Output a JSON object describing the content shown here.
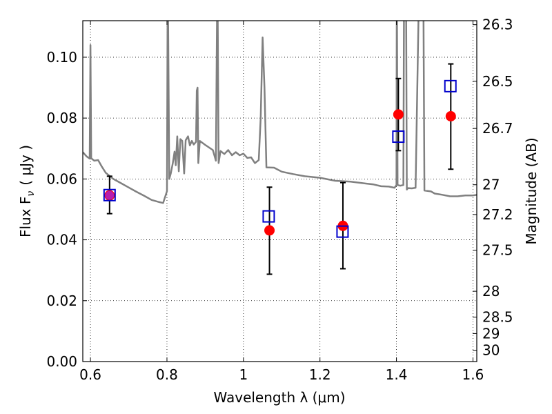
{
  "chart_data": {
    "type": "scatter",
    "xlabel": "Wavelength  λ (μm)",
    "ylabel": "Flux  F",
    "ylabel_sub": "ν",
    "ylabel_unit": "( μJy )",
    "y2label": "Magnitude (AB)",
    "xlim": [
      0.58,
      1.61
    ],
    "ylim": [
      0.0,
      0.112
    ],
    "grid": true,
    "x_ticks": [
      {
        "value": 0.6,
        "label": "0.6"
      },
      {
        "value": 0.8,
        "label": "0.8"
      },
      {
        "value": 1.0,
        "label": "1"
      },
      {
        "value": 1.2,
        "label": "1.2"
      },
      {
        "value": 1.4,
        "label": "1.4"
      },
      {
        "value": 1.6,
        "label": "1.6"
      }
    ],
    "y_ticks": [
      {
        "value": 0.0,
        "label": "0.00"
      },
      {
        "value": 0.02,
        "label": "0.02"
      },
      {
        "value": 0.04,
        "label": "0.04"
      },
      {
        "value": 0.06,
        "label": "0.06"
      },
      {
        "value": 0.08,
        "label": "0.08"
      },
      {
        "value": 0.1,
        "label": "0.10"
      }
    ],
    "y2_ticks": [
      {
        "label": "26.3",
        "flux": 0.1107
      },
      {
        "label": "26.5",
        "flux": 0.0921
      },
      {
        "label": "26.7",
        "flux": 0.0766
      },
      {
        "label": "27",
        "flux": 0.0581
      },
      {
        "label": "27.2",
        "flux": 0.0483
      },
      {
        "label": "27.5",
        "flux": 0.0366
      },
      {
        "label": "28",
        "flux": 0.0231
      },
      {
        "label": "28.5",
        "flux": 0.0146
      },
      {
        "label": "29",
        "flux": 0.0092
      },
      {
        "label": "30",
        "flux": 0.0037
      }
    ],
    "series": [
      {
        "kind": "line",
        "color": "#808080",
        "points": [
          [
            0.58,
            0.0688
          ],
          [
            0.59,
            0.0674
          ],
          [
            0.598,
            0.0667
          ],
          [
            0.6,
            0.104
          ],
          [
            0.602,
            0.0668
          ],
          [
            0.61,
            0.066
          ],
          [
            0.62,
            0.0662
          ],
          [
            0.63,
            0.064
          ],
          [
            0.64,
            0.062
          ],
          [
            0.66,
            0.06
          ],
          [
            0.68,
            0.0586
          ],
          [
            0.7,
            0.0572
          ],
          [
            0.72,
            0.0558
          ],
          [
            0.74,
            0.0545
          ],
          [
            0.76,
            0.0531
          ],
          [
            0.78,
            0.0524
          ],
          [
            0.79,
            0.0521
          ],
          [
            0.8,
            0.056
          ],
          [
            0.802,
            0.13
          ],
          [
            0.806,
            0.06
          ],
          [
            0.81,
            0.0618
          ],
          [
            0.815,
            0.065
          ],
          [
            0.82,
            0.069
          ],
          [
            0.823,
            0.0645
          ],
          [
            0.827,
            0.074
          ],
          [
            0.831,
            0.0625
          ],
          [
            0.835,
            0.0731
          ],
          [
            0.84,
            0.0725
          ],
          [
            0.845,
            0.0618
          ],
          [
            0.849,
            0.0727
          ],
          [
            0.855,
            0.074
          ],
          [
            0.86,
            0.071
          ],
          [
            0.865,
            0.0725
          ],
          [
            0.87,
            0.0713
          ],
          [
            0.876,
            0.0722
          ],
          [
            0.878,
            0.089
          ],
          [
            0.88,
            0.09
          ],
          [
            0.882,
            0.0652
          ],
          [
            0.886,
            0.0725
          ],
          [
            0.9,
            0.0712
          ],
          [
            0.92,
            0.0695
          ],
          [
            0.928,
            0.066
          ],
          [
            0.932,
            0.13
          ],
          [
            0.935,
            0.0652
          ],
          [
            0.94,
            0.0692
          ],
          [
            0.95,
            0.0682
          ],
          [
            0.96,
            0.0695
          ],
          [
            0.97,
            0.0678
          ],
          [
            0.98,
            0.0688
          ],
          [
            0.99,
            0.0678
          ],
          [
            1.0,
            0.0683
          ],
          [
            1.01,
            0.0669
          ],
          [
            1.02,
            0.0671
          ],
          [
            1.03,
            0.0652
          ],
          [
            1.04,
            0.0662
          ],
          [
            1.045,
            0.08
          ],
          [
            1.05,
            0.1065
          ],
          [
            1.055,
            0.09
          ],
          [
            1.06,
            0.0638
          ],
          [
            1.08,
            0.0637
          ],
          [
            1.1,
            0.0624
          ],
          [
            1.13,
            0.0616
          ],
          [
            1.16,
            0.0609
          ],
          [
            1.2,
            0.0604
          ],
          [
            1.24,
            0.0594
          ],
          [
            1.28,
            0.0591
          ],
          [
            1.32,
            0.0585
          ],
          [
            1.34,
            0.0582
          ],
          [
            1.36,
            0.0576
          ],
          [
            1.38,
            0.0575
          ],
          [
            1.395,
            0.0571
          ],
          [
            1.4,
            0.058
          ],
          [
            1.401,
            0.13
          ],
          [
            1.403,
            0.058
          ],
          [
            1.41,
            0.0578
          ],
          [
            1.418,
            0.058
          ],
          [
            1.42,
            0.13
          ],
          [
            1.425,
            0.13
          ],
          [
            1.427,
            0.0565
          ],
          [
            1.43,
            0.057
          ],
          [
            1.44,
            0.0569
          ],
          [
            1.45,
            0.0571
          ],
          [
            1.46,
            0.13
          ],
          [
            1.47,
            0.13
          ],
          [
            1.473,
            0.0562
          ],
          [
            1.49,
            0.0559
          ],
          [
            1.5,
            0.0552
          ],
          [
            1.52,
            0.0548
          ],
          [
            1.54,
            0.0543
          ],
          [
            1.56,
            0.0543
          ],
          [
            1.58,
            0.0546
          ],
          [
            1.6,
            0.0546
          ],
          [
            1.61,
            0.0548
          ]
        ]
      },
      {
        "kind": "errorbar",
        "color": "#000000",
        "points": [
          {
            "x": 0.65,
            "y": 0.0546,
            "lo": 0.0486,
            "hi": 0.0609
          },
          {
            "x": 1.068,
            "y": 0.0431,
            "lo": 0.0287,
            "hi": 0.0573
          },
          {
            "x": 1.26,
            "y": 0.0446,
            "lo": 0.0305,
            "hi": 0.0588
          },
          {
            "x": 1.405,
            "y": 0.0812,
            "lo": 0.0693,
            "hi": 0.093
          },
          {
            "x": 1.542,
            "y": 0.0806,
            "lo": 0.0632,
            "hi": 0.0978
          }
        ]
      },
      {
        "kind": "scatter",
        "marker": "circle",
        "color": "#ff0000",
        "points": [
          [
            0.65,
            0.0546
          ],
          [
            1.068,
            0.0431
          ],
          [
            1.26,
            0.0446
          ],
          [
            1.405,
            0.0812
          ],
          [
            1.542,
            0.0806
          ]
        ]
      },
      {
        "kind": "scatter",
        "marker": "open-square",
        "color": "#0000cc",
        "points": [
          [
            0.65,
            0.0547
          ],
          [
            1.066,
            0.0477
          ],
          [
            1.259,
            0.0427
          ],
          [
            1.405,
            0.0739
          ],
          [
            1.541,
            0.0905
          ]
        ]
      }
    ],
    "overlap_color": "#aa22cc"
  }
}
